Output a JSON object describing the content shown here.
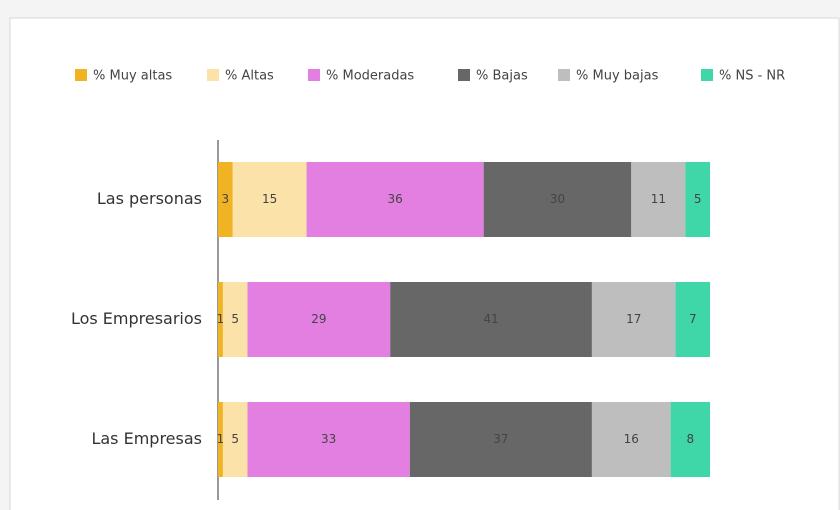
{
  "chart_data": {
    "type": "stacked-bar-horizontal",
    "categories": [
      "Las personas",
      "Los Empresarios",
      "Las Empresas"
    ],
    "series": [
      {
        "name": "% Muy altas",
        "color": "#f0b323",
        "values": [
          3,
          1,
          1
        ]
      },
      {
        "name": "% Altas",
        "color": "#fbe2a8",
        "values": [
          15,
          5,
          5
        ]
      },
      {
        "name": "% Moderadas",
        "color": "#e27fe0",
        "values": [
          36,
          29,
          33
        ]
      },
      {
        "name": "% Bajas",
        "color": "#676767",
        "values": [
          30,
          41,
          37
        ]
      },
      {
        "name": "% Muy bajas",
        "color": "#bebebe",
        "values": [
          11,
          17,
          16
        ]
      },
      {
        "name": "% NS - NR",
        "color": "#3fd6a8",
        "values": [
          5,
          7,
          8
        ]
      }
    ],
    "legend": "top"
  }
}
